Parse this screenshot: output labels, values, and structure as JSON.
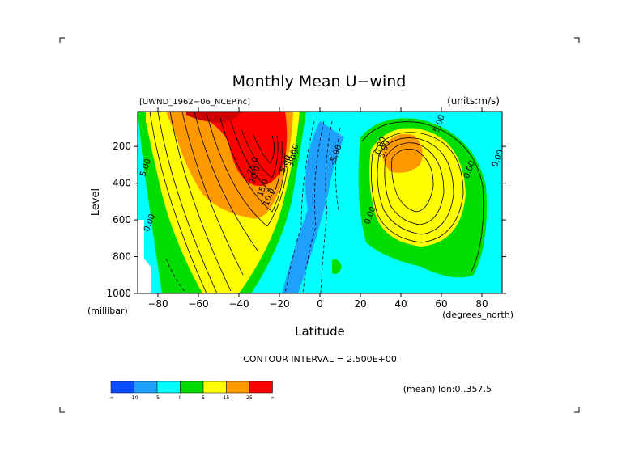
{
  "chart_data": {
    "type": "heatmap",
    "title": "Monthly Mean U−wind",
    "dataset_label": "[UWND_1962−06_NCEP.nc]",
    "units_label": "(units:m/s)",
    "xlabel": "Latitude",
    "xunits": "(degrees_north)",
    "ylabel": "Level",
    "yunits": "(millibar)",
    "xlim": [
      -90,
      90
    ],
    "ylim": [
      1000,
      10
    ],
    "x_ticks": [
      -80,
      -60,
      -40,
      -20,
      0,
      20,
      40,
      60,
      80
    ],
    "x_tick_labels": [
      "−80",
      "−60",
      "−40",
      "−20",
      "0",
      "20",
      "40",
      "60",
      "80"
    ],
    "y_ticks": [
      200,
      400,
      600,
      800,
      1000
    ],
    "y_tick_labels": [
      "200",
      "400",
      "600",
      "800",
      "1000"
    ],
    "contour_interval_label": "CONTOUR INTERVAL = 2.500E+00",
    "footer_label": "(mean) lon:0..357.5",
    "colorbar": {
      "colors": [
        "#0a50ff",
        "#1fa0ff",
        "#00ffff",
        "#00dd00",
        "#ffff00",
        "#ff9900",
        "#ff0000"
      ],
      "boundary_labels": [
        "-∞",
        "-10",
        "-5",
        "0",
        "5",
        "15",
        "25",
        "∞"
      ]
    },
    "jets": [
      {
        "lat": -30,
        "level_mb": 200,
        "max_ms": 30
      },
      {
        "lat": 38,
        "level_mb": 180,
        "max_ms": 17.5
      }
    ],
    "contour_labels": [
      {
        "text": "25.0",
        "lat": -32,
        "level_mb": 310
      },
      {
        "text": "20.0",
        "lat": -31,
        "level_mb": 360
      },
      {
        "text": "15.0",
        "lat": -27,
        "level_mb": 430
      },
      {
        "text": "10.0",
        "lat": -24,
        "level_mb": 480
      },
      {
        "text": "5.00",
        "lat": -85,
        "level_mb": 320
      },
      {
        "text": "5.00",
        "lat": -16,
        "level_mb": 300
      },
      {
        "text": "3.00",
        "lat": -12,
        "level_mb": 270
      },
      {
        "text": "0.00",
        "lat": -12,
        "level_mb": 240
      },
      {
        "text": "-5.00",
        "lat": 9,
        "level_mb": 250
      },
      {
        "text": "0.00",
        "lat": -83,
        "level_mb": 620
      },
      {
        "text": "0.00",
        "lat": 26,
        "level_mb": 580
      },
      {
        "text": "0.00",
        "lat": 31,
        "level_mb": 200
      },
      {
        "text": "5.00",
        "lat": 33,
        "level_mb": 220
      },
      {
        "text": "5.00",
        "lat": 60,
        "level_mb": 80
      },
      {
        "text": "0.00",
        "lat": 75,
        "level_mb": 330
      },
      {
        "text": "0.00",
        "lat": 89,
        "level_mb": 270
      }
    ]
  }
}
